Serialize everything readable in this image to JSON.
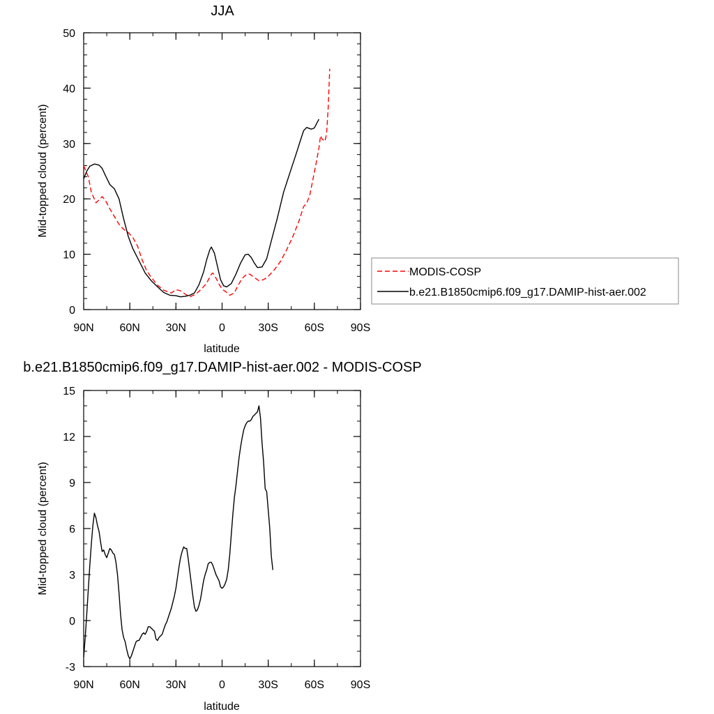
{
  "chart_data": [
    {
      "type": "line",
      "title": "JJA",
      "xlabel": "latitude",
      "ylabel": "Mid-topped cloud (percent)",
      "xlim": [
        90,
        -90
      ],
      "ylim": [
        0,
        50
      ],
      "x_ticks": [
        {
          "value": 90,
          "label": "90N"
        },
        {
          "value": 60,
          "label": "60N"
        },
        {
          "value": 30,
          "label": "30N"
        },
        {
          "value": 0,
          "label": "0"
        },
        {
          "value": -30,
          "label": "30S"
        },
        {
          "value": -60,
          "label": "60S"
        },
        {
          "value": -90,
          "label": "90S"
        }
      ],
      "y_ticks": [
        0,
        10,
        20,
        30,
        40,
        50
      ],
      "legend_position": "right",
      "series": [
        {
          "name": "MODIS-COSP",
          "color": "#ff0000",
          "dash": "dashed",
          "points": [
            [
              90,
              26
            ],
            [
              87,
              24
            ],
            [
              85,
              21.2
            ],
            [
              82,
              19.3
            ],
            [
              80,
              19.8
            ],
            [
              78,
              20.4
            ],
            [
              76,
              19.8
            ],
            [
              73,
              18.2
            ],
            [
              70,
              16.8
            ],
            [
              67,
              15.4
            ],
            [
              64,
              14.5
            ],
            [
              61,
              13.9
            ],
            [
              58,
              13
            ],
            [
              55,
              11.5
            ],
            [
              52,
              9
            ],
            [
              49,
              7
            ],
            [
              46,
              5.8
            ],
            [
              42,
              4.4
            ],
            [
              38,
              3.5
            ],
            [
              33,
              3
            ],
            [
              30,
              3.6
            ],
            [
              27,
              3.4
            ],
            [
              24,
              2.8
            ],
            [
              21,
              2.3
            ],
            [
              17,
              2.8
            ],
            [
              13,
              3.8
            ],
            [
              10,
              4.8
            ],
            [
              7,
              6.4
            ],
            [
              6,
              6.6
            ],
            [
              4,
              5.7
            ],
            [
              2,
              4.6
            ],
            [
              0,
              3.7
            ],
            [
              -3,
              3.1
            ],
            [
              -5,
              2.6
            ],
            [
              -8,
              3
            ],
            [
              -10,
              4.2
            ],
            [
              -13,
              5.6
            ],
            [
              -16,
              6.4
            ],
            [
              -18,
              6.4
            ],
            [
              -21,
              5.8
            ],
            [
              -24,
              5.2
            ],
            [
              -27,
              5.4
            ],
            [
              -30,
              6
            ],
            [
              -34,
              7.2
            ],
            [
              -38,
              8.7
            ],
            [
              -42,
              10.8
            ],
            [
              -46,
              13.2
            ],
            [
              -50,
              16
            ],
            [
              -53,
              18.6
            ],
            [
              -55,
              19.2
            ],
            [
              -57,
              20.6
            ],
            [
              -59,
              23.4
            ],
            [
              -61,
              26.2
            ],
            [
              -63,
              29.2
            ],
            [
              -64,
              31.4
            ],
            [
              -65,
              30.8
            ],
            [
              -67,
              30.4
            ],
            [
              -68,
              32
            ],
            [
              -69,
              36.5
            ],
            [
              -70,
              43.5
            ]
          ]
        },
        {
          "name": "b.e21.B1850cmip6.f09_g17.DAMIP-hist-aer.002",
          "color": "#000000",
          "dash": "solid",
          "points": [
            [
              90,
              23.6
            ],
            [
              88,
              25
            ],
            [
              86,
              25.9
            ],
            [
              83,
              26.3
            ],
            [
              80,
              26.1
            ],
            [
              78,
              25.5
            ],
            [
              76,
              24.3
            ],
            [
              73,
              22.6
            ],
            [
              70,
              21.8
            ],
            [
              67,
              20
            ],
            [
              64,
              16.4
            ],
            [
              61,
              13.2
            ],
            [
              58,
              11
            ],
            [
              54,
              8.8
            ],
            [
              50,
              6.6
            ],
            [
              46,
              5.2
            ],
            [
              42,
              4.1
            ],
            [
              38,
              3.1
            ],
            [
              34,
              2.6
            ],
            [
              30,
              2.5
            ],
            [
              27,
              2.3
            ],
            [
              24,
              2.4
            ],
            [
              21,
              2.6
            ],
            [
              18,
              3
            ],
            [
              15,
              4.5
            ],
            [
              12,
              6.8
            ],
            [
              10,
              9
            ],
            [
              8,
              10.8
            ],
            [
              7,
              11.3
            ],
            [
              5,
              10.2
            ],
            [
              3,
              7.8
            ],
            [
              1,
              5.4
            ],
            [
              -1,
              4.3
            ],
            [
              -3,
              4.1
            ],
            [
              -6,
              4.7
            ],
            [
              -9,
              6.4
            ],
            [
              -12,
              8.4
            ],
            [
              -15,
              9.9
            ],
            [
              -17,
              10
            ],
            [
              -19,
              9.4
            ],
            [
              -21,
              8.4
            ],
            [
              -23,
              7.6
            ],
            [
              -26,
              7.7
            ],
            [
              -29,
              9.2
            ],
            [
              -32,
              12.4
            ],
            [
              -36,
              16.6
            ],
            [
              -40,
              21.2
            ],
            [
              -44,
              24.6
            ],
            [
              -48,
              28
            ],
            [
              -51,
              30.6
            ],
            [
              -53,
              32.3
            ],
            [
              -55,
              32.9
            ],
            [
              -58,
              32.6
            ],
            [
              -60,
              32.8
            ],
            [
              -63,
              34.4
            ]
          ]
        }
      ]
    },
    {
      "type": "line",
      "title": "b.e21.B1850cmip6.f09_g17.DAMIP-hist-aer.002 - MODIS-COSP",
      "xlabel": "latitude",
      "ylabel": "Mid-topped cloud (percent)",
      "xlim": [
        90,
        -90
      ],
      "ylim": [
        -3,
        15
      ],
      "x_ticks": [
        {
          "value": 90,
          "label": "90N"
        },
        {
          "value": 60,
          "label": "60N"
        },
        {
          "value": 30,
          "label": "30N"
        },
        {
          "value": 0,
          "label": "0"
        },
        {
          "value": -30,
          "label": "30S"
        },
        {
          "value": -60,
          "label": "60S"
        },
        {
          "value": -90,
          "label": "90S"
        }
      ],
      "y_ticks": [
        -3,
        0,
        3,
        6,
        9,
        12,
        15
      ],
      "series": [
        {
          "color": "#000000",
          "dash": "solid",
          "points": [
            [
              90,
              -2.4
            ],
            [
              89,
              -1.1
            ],
            [
              88,
              0.4
            ],
            [
              87,
              2
            ],
            [
              86,
              3.6
            ],
            [
              85,
              5
            ],
            [
              84,
              6.2
            ],
            [
              83,
              7
            ],
            [
              82,
              6.7
            ],
            [
              81,
              6.2
            ],
            [
              80,
              5.8
            ],
            [
              79,
              5.1
            ],
            [
              78,
              4.5
            ],
            [
              77,
              4.6
            ],
            [
              76,
              4.3
            ],
            [
              75,
              4.1
            ],
            [
              74,
              4.4
            ],
            [
              73,
              4.7
            ],
            [
              72,
              4.6
            ],
            [
              71,
              4.4
            ],
            [
              70,
              4.3
            ],
            [
              69,
              3.8
            ],
            [
              68,
              3
            ],
            [
              67,
              1.8
            ],
            [
              66,
              0.4
            ],
            [
              65,
              -0.6
            ],
            [
              64,
              -1.1
            ],
            [
              63,
              -1.4
            ],
            [
              62,
              -1.9
            ],
            [
              61,
              -2.3
            ],
            [
              60,
              -2.5
            ],
            [
              59,
              -2.3
            ],
            [
              58,
              -2
            ],
            [
              57,
              -1.7
            ],
            [
              56,
              -1.4
            ],
            [
              55,
              -1.3
            ],
            [
              54,
              -1.3
            ],
            [
              53,
              -1.1
            ],
            [
              52,
              -0.9
            ],
            [
              51,
              -0.8
            ],
            [
              50,
              -0.9
            ],
            [
              49,
              -0.7
            ],
            [
              48,
              -0.4
            ],
            [
              47,
              -0.4
            ],
            [
              46,
              -0.5
            ],
            [
              45,
              -0.6
            ],
            [
              44,
              -0.7
            ],
            [
              43,
              -1.2
            ],
            [
              42,
              -1.3
            ],
            [
              41,
              -1.1
            ],
            [
              40,
              -1
            ],
            [
              39,
              -0.9
            ],
            [
              38,
              -0.6
            ],
            [
              37,
              -0.3
            ],
            [
              36,
              -0.1
            ],
            [
              35,
              0.2
            ],
            [
              34,
              0.5
            ],
            [
              33,
              0.8
            ],
            [
              32,
              1.2
            ],
            [
              31,
              1.6
            ],
            [
              30,
              2.1
            ],
            [
              29,
              2.8
            ],
            [
              28,
              3.5
            ],
            [
              27,
              4.1
            ],
            [
              26,
              4.5
            ],
            [
              25,
              4.8
            ],
            [
              24,
              4.7
            ],
            [
              23,
              4.7
            ],
            [
              22,
              4
            ],
            [
              21,
              3.2
            ],
            [
              20,
              2.4
            ],
            [
              19,
              1.6
            ],
            [
              18,
              0.9
            ],
            [
              17,
              0.6
            ],
            [
              16,
              0.7
            ],
            [
              15,
              1
            ],
            [
              14,
              1.4
            ],
            [
              13,
              2
            ],
            [
              12,
              2.6
            ],
            [
              11,
              3
            ],
            [
              10,
              3.3
            ],
            [
              9,
              3.7
            ],
            [
              8,
              3.8
            ],
            [
              7,
              3.8
            ],
            [
              6,
              3.6
            ],
            [
              5,
              3.3
            ],
            [
              4,
              3
            ],
            [
              3,
              2.8
            ],
            [
              2,
              2.6
            ],
            [
              1,
              2.2
            ],
            [
              0,
              2.1
            ],
            [
              -1,
              2.2
            ],
            [
              -2,
              2.4
            ],
            [
              -3,
              2.7
            ],
            [
              -4,
              3.3
            ],
            [
              -5,
              4.3
            ],
            [
              -6,
              5.6
            ],
            [
              -7,
              6.9
            ],
            [
              -8,
              8
            ],
            [
              -9,
              8.8
            ],
            [
              -10,
              9.7
            ],
            [
              -11,
              10.6
            ],
            [
              -12,
              11.3
            ],
            [
              -13,
              11.9
            ],
            [
              -14,
              12.4
            ],
            [
              -15,
              12.7
            ],
            [
              -16,
              12.9
            ],
            [
              -17,
              13
            ],
            [
              -18,
              13
            ],
            [
              -19,
              13.1
            ],
            [
              -20,
              13.3
            ],
            [
              -21,
              13.4
            ],
            [
              -22,
              13.5
            ],
            [
              -23,
              13.6
            ],
            [
              -24,
              14
            ],
            [
              -25,
              13.2
            ],
            [
              -26,
              11.6
            ],
            [
              -27,
              10.3
            ],
            [
              -28,
              8.6
            ],
            [
              -29,
              8.4
            ],
            [
              -30,
              7.2
            ],
            [
              -31,
              6
            ],
            [
              -32,
              4.2
            ],
            [
              -33,
              3.3
            ]
          ]
        }
      ]
    }
  ]
}
